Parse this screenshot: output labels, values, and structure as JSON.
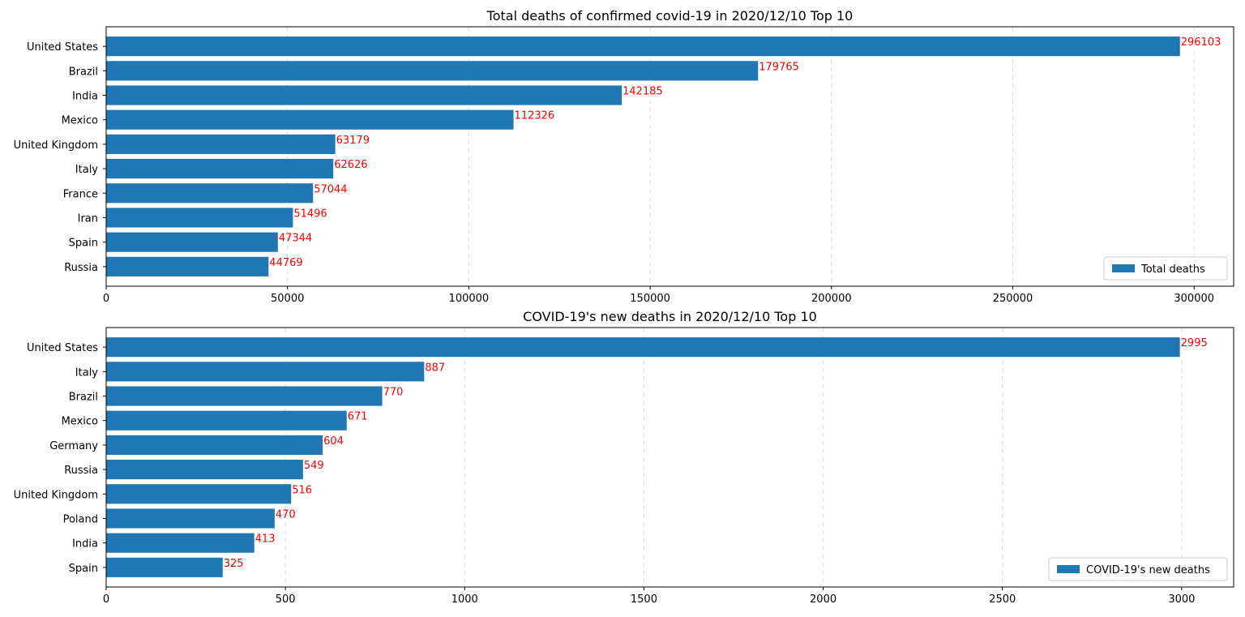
{
  "chart_data": [
    {
      "type": "bar",
      "orientation": "horizontal",
      "title": "Total deaths of confirmed covid-19 in 2020/12/10 Top 10",
      "categories": [
        "United States",
        "Brazil",
        "India",
        "Mexico",
        "United Kingdom",
        "Italy",
        "France",
        "Iran",
        "Spain",
        "Russia"
      ],
      "series": [
        {
          "name": "Total deaths",
          "values": [
            296103,
            179765,
            142185,
            112326,
            63179,
            62626,
            57044,
            51496,
            47344,
            44769
          ]
        }
      ],
      "data_labels": [
        "296103",
        "179765",
        "142185",
        "112326",
        "63179",
        "62626",
        "57044",
        "51496",
        "47344",
        "44769"
      ],
      "xlim": [
        0,
        310905
      ],
      "xticks": [
        0,
        50000,
        100000,
        150000,
        200000,
        250000,
        300000
      ],
      "xtick_labels": [
        "0",
        "50000",
        "100000",
        "150000",
        "200000",
        "250000",
        "300000"
      ],
      "grid": "x-dashed",
      "legend": "lower-right",
      "bar_color": "#1f77b4",
      "label_color": "#ff0000"
    },
    {
      "type": "bar",
      "orientation": "horizontal",
      "title": "COVID-19's new deaths in 2020/12/10 Top 10",
      "categories": [
        "United States",
        "Italy",
        "Brazil",
        "Mexico",
        "Germany",
        "Russia",
        "United Kingdom",
        "Poland",
        "India",
        "Spain"
      ],
      "series": [
        {
          "name": "COVID-19's new deaths",
          "values": [
            2995,
            887,
            770,
            671,
            604,
            549,
            516,
            470,
            413,
            325
          ]
        }
      ],
      "data_labels": [
        "2995",
        "887",
        "770",
        "671",
        "604",
        "549",
        "516",
        "470",
        "413",
        "325"
      ],
      "xlim": [
        0,
        3145
      ],
      "xticks": [
        0,
        500,
        1000,
        1500,
        2000,
        2500,
        3000
      ],
      "xtick_labels": [
        "0",
        "500",
        "1000",
        "1500",
        "2000",
        "2500",
        "3000"
      ],
      "grid": "x-dashed",
      "legend": "lower-right",
      "bar_color": "#1f77b4",
      "label_color": "#ff0000"
    }
  ]
}
